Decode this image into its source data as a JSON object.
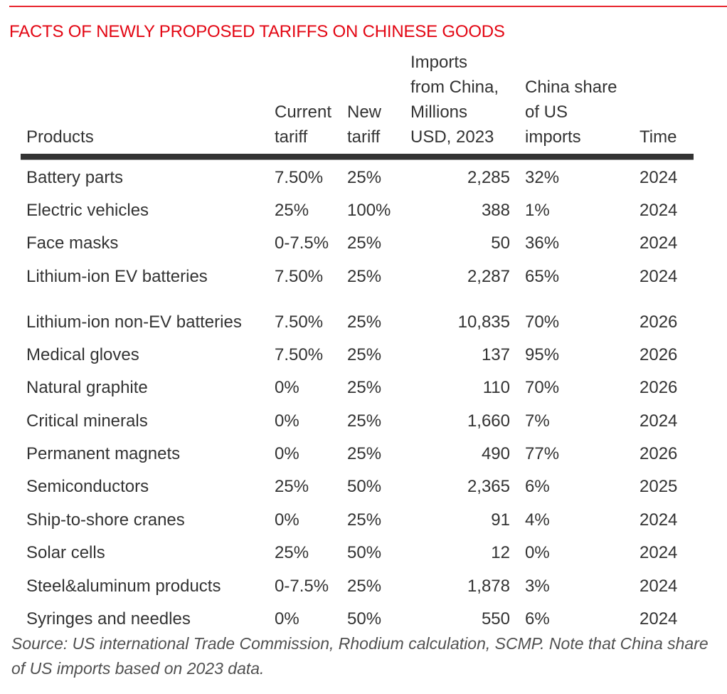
{
  "chart_data": {
    "type": "table",
    "title": "FACTS OF NEWLY PROPOSED TARIFFS ON CHINESE GOODS",
    "columns": [
      {
        "key": "product",
        "label": [
          "Products"
        ]
      },
      {
        "key": "current_tariff",
        "label": [
          "Current",
          "tariff"
        ]
      },
      {
        "key": "new_tariff",
        "label": [
          "New",
          "tariff"
        ]
      },
      {
        "key": "imports",
        "label": [
          "Imports",
          "from China,",
          "Millions",
          "USD, 2023"
        ]
      },
      {
        "key": "share",
        "label": [
          "China share",
          "of US",
          "imports"
        ]
      },
      {
        "key": "time",
        "label": [
          "Time"
        ]
      }
    ],
    "rows": [
      {
        "product": "Battery parts",
        "current_tariff": "7.50%",
        "new_tariff": "25%",
        "imports": "2,285",
        "share": "32%",
        "time": "2024"
      },
      {
        "product": "Electric vehicles",
        "current_tariff": "25%",
        "new_tariff": "100%",
        "imports": "388",
        "share": "1%",
        "time": "2024"
      },
      {
        "product": "Face masks",
        "current_tariff": "0-7.5%",
        "new_tariff": "25%",
        "imports": "50",
        "share": "36%",
        "time": "2024"
      },
      {
        "product": "Lithium-ion EV batteries",
        "current_tariff": "7.50%",
        "new_tariff": "25%",
        "imports": "2,287",
        "share": "65%",
        "time": "2024"
      },
      {
        "product": "Lithium-ion non-EV batteries",
        "current_tariff": "7.50%",
        "new_tariff": "25%",
        "imports": "10,835",
        "share": "70%",
        "time": "2026"
      },
      {
        "product": "Medical gloves",
        "current_tariff": "7.50%",
        "new_tariff": "25%",
        "imports": "137",
        "share": "95%",
        "time": "2026"
      },
      {
        "product": "Natural graphite",
        "current_tariff": "0%",
        "new_tariff": "25%",
        "imports": "110",
        "share": "70%",
        "time": "2026"
      },
      {
        "product": "Critical minerals",
        "current_tariff": "0%",
        "new_tariff": "25%",
        "imports": "1,660",
        "share": "7%",
        "time": "2024"
      },
      {
        "product": "Permanent magnets",
        "current_tariff": "0%",
        "new_tariff": "25%",
        "imports": "490",
        "share": "77%",
        "time": "2026"
      },
      {
        "product": "Semiconductors",
        "current_tariff": "25%",
        "new_tariff": "50%",
        "imports": "2,365",
        "share": "6%",
        "time": "2025"
      },
      {
        "product": "Ship-to-shore cranes",
        "current_tariff": "0%",
        "new_tariff": "25%",
        "imports": "91",
        "share": "4%",
        "time": "2024"
      },
      {
        "product": "Solar cells",
        "current_tariff": "25%",
        "new_tariff": "50%",
        "imports": "12",
        "share": "0%",
        "time": "2024"
      },
      {
        "product": "Steel&aluminum products",
        "current_tariff": "0-7.5%",
        "new_tariff": "25%",
        "imports": "1,878",
        "share": "3%",
        "time": "2024"
      },
      {
        "product": "Syringes and needles",
        "current_tariff": "0%",
        "new_tariff": "50%",
        "imports": "550",
        "share": "6%",
        "time": "2024"
      }
    ],
    "source": "Source: US international Trade Commission, Rhodium calculation, SCMP. Note that China share of US imports based on 2023 data."
  },
  "colors": {
    "title": "#e30613",
    "rule": "#e8262e",
    "text": "#333333"
  }
}
